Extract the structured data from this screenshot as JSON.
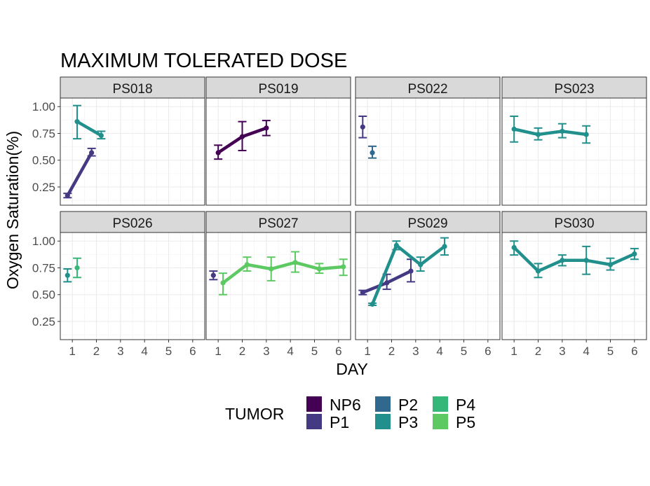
{
  "chart_data": {
    "type": "line",
    "title": "MAXIMUM TOLERATED DOSE",
    "xlabel": "DAY",
    "ylabel": "Oxygen Saturation(%)",
    "xlim": [
      0.5,
      6.5
    ],
    "ylim": [
      0.08,
      1.08
    ],
    "x_ticks": [
      "1",
      "2",
      "3",
      "4",
      "5",
      "6"
    ],
    "y_ticks": [
      "0.25",
      "0.50",
      "0.75",
      "1.00"
    ],
    "grid": true,
    "facets": [
      "PS018",
      "PS019",
      "PS022",
      "PS023",
      "PS026",
      "PS027",
      "PS029",
      "PS030"
    ],
    "legend": {
      "title": "TUMOR",
      "placement": "bottom",
      "entries": [
        {
          "name": "NP6",
          "color": "#440154"
        },
        {
          "name": "P1",
          "color": "#443A83"
        },
        {
          "name": "P2",
          "color": "#31688E"
        },
        {
          "name": "P3",
          "color": "#21908C"
        },
        {
          "name": "P4",
          "color": "#35B779"
        },
        {
          "name": "P5",
          "color": "#5DC963"
        }
      ]
    },
    "panels": [
      {
        "facet": "PS018",
        "series": [
          {
            "name": "P1",
            "points": [
              {
                "x": 0.8,
                "y": 0.17,
                "lo": 0.15,
                "hi": 0.19
              },
              {
                "x": 1.8,
                "y": 0.57,
                "lo": 0.54,
                "hi": 0.61
              }
            ]
          },
          {
            "name": "P3",
            "points": [
              {
                "x": 1.2,
                "y": 0.86,
                "lo": 0.7,
                "hi": 1.01
              },
              {
                "x": 2.2,
                "y": 0.73,
                "lo": 0.7,
                "hi": 0.77
              }
            ]
          }
        ]
      },
      {
        "facet": "PS019",
        "series": [
          {
            "name": "NP6",
            "points": [
              {
                "x": 1.0,
                "y": 0.57,
                "lo": 0.51,
                "hi": 0.64
              },
              {
                "x": 2.0,
                "y": 0.72,
                "lo": 0.59,
                "hi": 0.86
              },
              {
                "x": 3.0,
                "y": 0.8,
                "lo": 0.73,
                "hi": 0.87
              }
            ]
          }
        ]
      },
      {
        "facet": "PS022",
        "series": [
          {
            "name": "P1",
            "points": [
              {
                "x": 0.8,
                "y": 0.81,
                "lo": 0.71,
                "hi": 0.91
              }
            ]
          },
          {
            "name": "P2",
            "points": [
              {
                "x": 1.2,
                "y": 0.57,
                "lo": 0.52,
                "hi": 0.63
              }
            ]
          }
        ]
      },
      {
        "facet": "PS023",
        "series": [
          {
            "name": "P3",
            "points": [
              {
                "x": 1.0,
                "y": 0.79,
                "lo": 0.67,
                "hi": 0.91
              },
              {
                "x": 2.0,
                "y": 0.74,
                "lo": 0.69,
                "hi": 0.8
              },
              {
                "x": 3.0,
                "y": 0.77,
                "lo": 0.71,
                "hi": 0.84
              },
              {
                "x": 4.0,
                "y": 0.74,
                "lo": 0.66,
                "hi": 0.82
              }
            ]
          }
        ]
      },
      {
        "facet": "PS026",
        "series": [
          {
            "name": "P3",
            "points": [
              {
                "x": 0.8,
                "y": 0.68,
                "lo": 0.62,
                "hi": 0.74
              }
            ]
          },
          {
            "name": "P4",
            "points": [
              {
                "x": 1.2,
                "y": 0.75,
                "lo": 0.66,
                "hi": 0.84
              }
            ]
          }
        ]
      },
      {
        "facet": "PS027",
        "series": [
          {
            "name": "P1",
            "points": [
              {
                "x": 0.8,
                "y": 0.68,
                "lo": 0.64,
                "hi": 0.72
              }
            ]
          },
          {
            "name": "P5",
            "points": [
              {
                "x": 1.2,
                "y": 0.61,
                "lo": 0.5,
                "hi": 0.7
              },
              {
                "x": 2.2,
                "y": 0.78,
                "lo": 0.72,
                "hi": 0.85
              },
              {
                "x": 3.2,
                "y": 0.74,
                "lo": 0.63,
                "hi": 0.85
              },
              {
                "x": 4.2,
                "y": 0.8,
                "lo": 0.71,
                "hi": 0.9
              },
              {
                "x": 5.2,
                "y": 0.74,
                "lo": 0.7,
                "hi": 0.79
              },
              {
                "x": 6.2,
                "y": 0.76,
                "lo": 0.68,
                "hi": 0.83
              }
            ]
          }
        ]
      },
      {
        "facet": "PS029",
        "series": [
          {
            "name": "P1",
            "points": [
              {
                "x": 0.8,
                "y": 0.52,
                "lo": 0.5,
                "hi": 0.54
              },
              {
                "x": 1.8,
                "y": 0.61,
                "lo": 0.55,
                "hi": 0.69
              },
              {
                "x": 2.8,
                "y": 0.72,
                "lo": 0.62,
                "hi": 0.83
              }
            ]
          },
          {
            "name": "P3",
            "points": [
              {
                "x": 1.2,
                "y": 0.41,
                "lo": 0.4,
                "hi": 0.42
              },
              {
                "x": 2.2,
                "y": 0.96,
                "lo": 0.92,
                "hi": 1.0
              },
              {
                "x": 3.2,
                "y": 0.78,
                "lo": 0.72,
                "hi": 0.85
              },
              {
                "x": 4.2,
                "y": 0.95,
                "lo": 0.87,
                "hi": 1.03
              }
            ]
          }
        ]
      },
      {
        "facet": "PS030",
        "series": [
          {
            "name": "P3",
            "points": [
              {
                "x": 1.0,
                "y": 0.94,
                "lo": 0.87,
                "hi": 1.0
              },
              {
                "x": 2.0,
                "y": 0.72,
                "lo": 0.66,
                "hi": 0.79
              },
              {
                "x": 3.0,
                "y": 0.82,
                "lo": 0.77,
                "hi": 0.87
              },
              {
                "x": 4.0,
                "y": 0.82,
                "lo": 0.69,
                "hi": 0.95
              },
              {
                "x": 5.0,
                "y": 0.78,
                "lo": 0.73,
                "hi": 0.84
              },
              {
                "x": 6.0,
                "y": 0.88,
                "lo": 0.83,
                "hi": 0.93
              }
            ]
          }
        ]
      }
    ]
  }
}
